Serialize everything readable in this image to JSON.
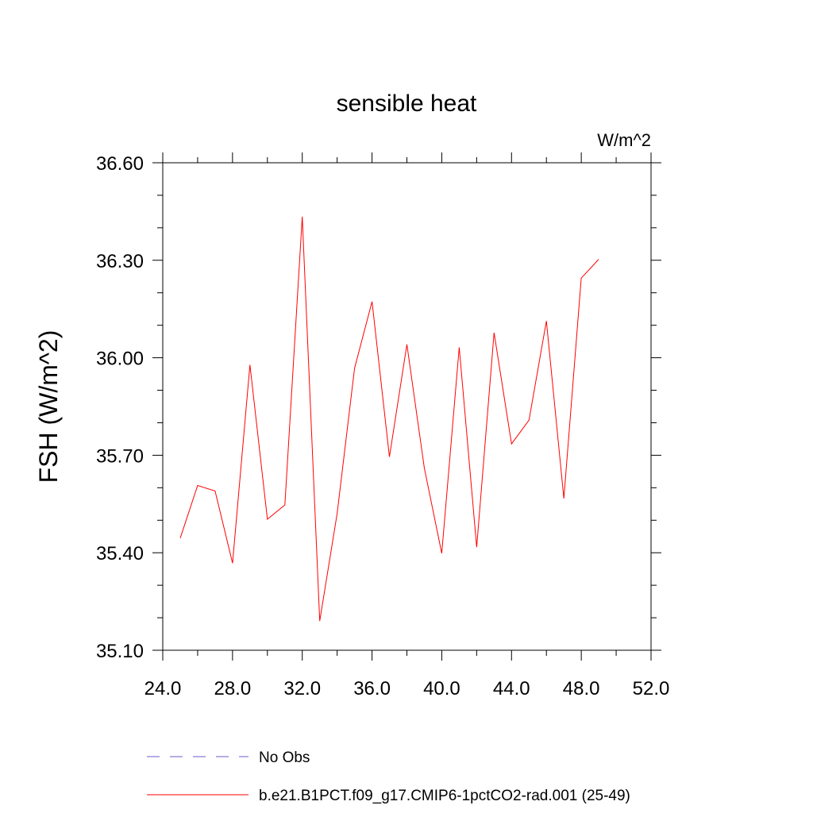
{
  "chart_data": {
    "type": "line",
    "title": "sensible heat",
    "units": "W/m^2",
    "ylabel": "FSH  (W/m^2)",
    "xlabel": "",
    "xlim": [
      24,
      52
    ],
    "ylim": [
      35.1,
      36.6
    ],
    "x_ticks": [
      "24.0",
      "28.0",
      "32.0",
      "36.0",
      "40.0",
      "44.0",
      "48.0",
      "52.0"
    ],
    "y_ticks": [
      "35.10",
      "35.40",
      "35.70",
      "36.00",
      "36.30",
      "36.60"
    ],
    "grid": false,
    "legend_position": "bottom",
    "series": [
      {
        "name": "No Obs",
        "color": "#6a5acd",
        "style": "dashed",
        "x": [],
        "y": []
      },
      {
        "name": "b.e21.B1PCT.f09_g17.CMIP6-1pctCO2-rad.001 (25-49)",
        "color": "#ff0000",
        "style": "solid",
        "x": [
          25,
          26,
          27,
          28,
          29,
          30,
          31,
          32,
          33,
          34,
          35,
          36,
          37,
          38,
          39,
          40,
          41,
          42,
          43,
          44,
          45,
          46,
          47,
          48,
          49
        ],
        "y": [
          35.445,
          35.607,
          35.59,
          35.368,
          35.978,
          35.503,
          35.547,
          36.434,
          35.19,
          35.52,
          35.968,
          36.173,
          35.695,
          36.041,
          35.66,
          35.398,
          36.032,
          35.417,
          36.077,
          35.735,
          35.808,
          36.113,
          35.567,
          36.245,
          36.303
        ]
      }
    ]
  }
}
